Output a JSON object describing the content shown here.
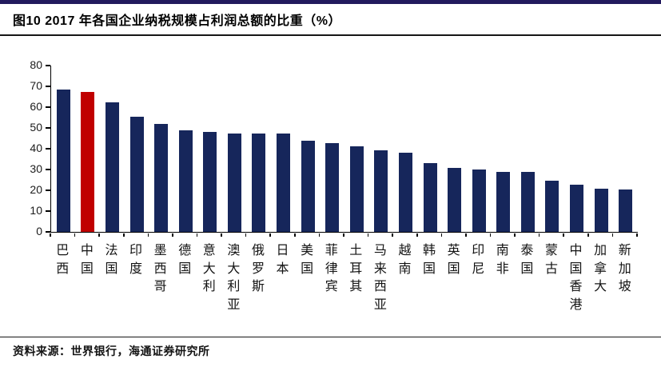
{
  "header": {
    "title": "图10 2017 年各国企业纳税规模占利润总额的比重（%）"
  },
  "footer": {
    "source": "资料来源：世界银行，海通证券研究所"
  },
  "colors": {
    "top_rule": "#221A5E",
    "axis": "#000000",
    "bar": "#16265B",
    "highlight": "#C00000"
  },
  "chart_data": {
    "type": "bar",
    "title": "2017 年各国企业纳税规模占利润总额的比重（%）",
    "xlabel": "",
    "ylabel": "",
    "ylim": [
      0,
      80
    ],
    "ytick_step": 10,
    "grid": false,
    "legend": false,
    "bar_color": "#16265B",
    "highlight_index": 1,
    "highlight_category": "中国",
    "highlight_color": "#C00000",
    "categories": [
      "巴西",
      "中国",
      "法国",
      "印度",
      "墨西哥",
      "德国",
      "意大利",
      "澳大利亚",
      "俄罗斯",
      "日本",
      "美国",
      "菲律宾",
      "土耳其",
      "马来西亚",
      "越南",
      "韩国",
      "英国",
      "印尼",
      "南非",
      "泰国",
      "蒙古",
      "中国香港",
      "加拿大",
      "新加坡"
    ],
    "values": [
      68.4,
      67.3,
      62.2,
      55.3,
      52.0,
      48.9,
      48.0,
      47.5,
      47.4,
      47.4,
      43.8,
      42.9,
      41.1,
      39.2,
      38.1,
      33.1,
      30.7,
      30.0,
      28.9,
      28.7,
      24.7,
      22.9,
      20.9,
      20.3
    ]
  }
}
